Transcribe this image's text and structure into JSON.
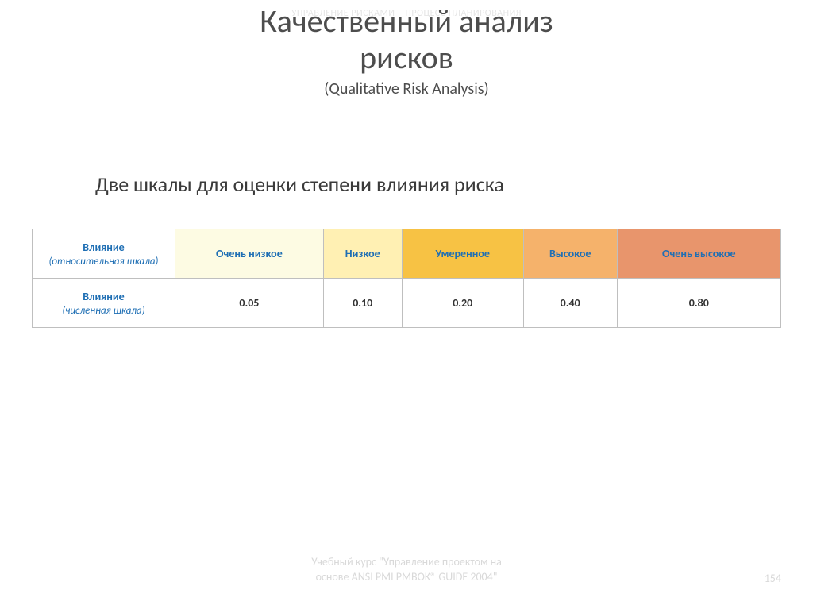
{
  "watermark": "УПРАВЛЕНИЕ РИСКАМИ – ПРОЦЕСС ПЛАНИРОВАНИЯ",
  "title_line1": "Качественный анализ",
  "title_line2": "рисков",
  "title_sub": "(Qualitative Risk Analysis)",
  "section_heading": "Две шкалы для оценки степени влияния риска",
  "table": {
    "row_header_top_main": "Влияние",
    "row_header_top_sub": "(относительная шкала)",
    "row_header_bottom_main": "Влияние",
    "row_header_bottom_sub": "(численная шкала)",
    "scale_labels": [
      "Очень низкое",
      "Низкое",
      "Умеренное",
      "Высокое",
      "Очень высокое"
    ],
    "scale_colors": [
      "#fdfbe3",
      "#fff0b3",
      "#f7c244",
      "#f5b26b",
      "#e8956c"
    ],
    "values": [
      "0.05",
      "0.10",
      "0.20",
      "0.40",
      "0.80"
    ],
    "border_color": "#bfbfbf",
    "header_text_color": "#1f6fb4",
    "value_text_color": "#333333"
  },
  "footer_line1": "Учебный курс \"Управление проектом на",
  "footer_line2": "основе ANSI PMI PMBOK® GUIDE 2004\"",
  "page_number": "154"
}
